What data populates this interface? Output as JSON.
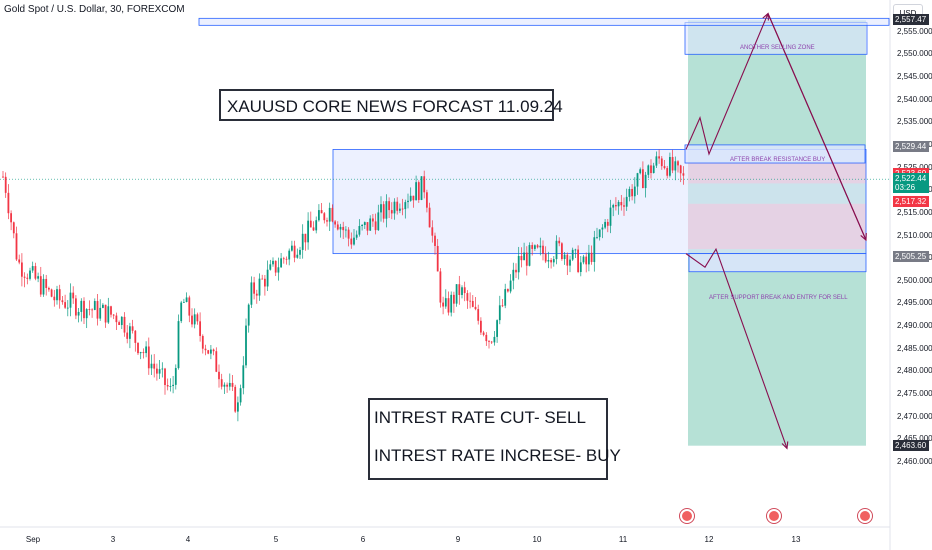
{
  "symbol_line": "Gold Spot / U.S. Dollar, 30, FOREXCOM",
  "currency": "USD",
  "title_annotation": "XAUUSD CORE  NEWS FORCAST 11.09.24",
  "notes": [
    "INTREST RATE CUT- SELL",
    "INTREST RATE INCRESE- BUY"
  ],
  "zones": {
    "selling": "ANOTHER SELLING ZONE",
    "resistance": "AFTER BREAK RESISTANCE BUY",
    "support": "AFTER SUPPORT   BREAK AND ENTRY FOR SELL"
  },
  "price_labels": [
    {
      "id": "upper",
      "price": 2557.47,
      "text": "2,557.47",
      "color": "#2a2e39"
    },
    {
      "id": "resist",
      "price": 2529.44,
      "text": "2,529.44",
      "color": "#787b86"
    },
    {
      "id": "stop",
      "price": 2523.6,
      "text": "2,523.60",
      "color": "#f23645"
    },
    {
      "id": "last",
      "price": 2522.44,
      "text": "2,522.44",
      "color": "#089981",
      "sub": "03:26"
    },
    {
      "id": "entry",
      "price": 2517.32,
      "text": "2,517.32",
      "color": "#f23645"
    },
    {
      "id": "support",
      "price": 2505.25,
      "text": "2,505.25",
      "color": "#787b86"
    },
    {
      "id": "target",
      "price": 2463.6,
      "text": "2,463.60",
      "color": "#2a2e39"
    }
  ],
  "x_ticks": [
    "Sep",
    "3",
    "4",
    "5",
    "6",
    "9",
    "10",
    "11",
    "12",
    "13"
  ],
  "colors": {
    "up": "#089981",
    "down": "#f23645",
    "zone_fill": "#dfe6ff",
    "zone_border": "#2962ff",
    "target": "#a9dccf",
    "stop": "#f4b6c2",
    "arrow": "#880e4f"
  },
  "chart_data": {
    "type": "candlestick",
    "title": "Gold Spot / U.S. Dollar, 30, FOREXCOM",
    "ylim": [
      2460,
      2560
    ],
    "y_ticks": [
      2460,
      2465,
      2470,
      2475,
      2480,
      2485,
      2490,
      2495,
      2500,
      2505,
      2510,
      2515,
      2520,
      2525,
      2530,
      2535,
      2540,
      2545,
      2550,
      2555
    ],
    "x_categories": [
      "Sep",
      "3",
      "4",
      "5",
      "6",
      "9",
      "10",
      "11",
      "12",
      "13"
    ],
    "keypoints": [
      {
        "day": "Sep",
        "price": 2523
      },
      {
        "day": "Sep",
        "price": 2504
      },
      {
        "day": "3",
        "price": 2496
      },
      {
        "day": "3",
        "price": 2492
      },
      {
        "day": "4",
        "price": 2475
      },
      {
        "day": "4",
        "price": 2496
      },
      {
        "day": "5",
        "price": 2472
      },
      {
        "day": "5",
        "price": 2497
      },
      {
        "day": "6",
        "price": 2516
      },
      {
        "day": "6",
        "price": 2509
      },
      {
        "day": "6",
        "price": 2518
      },
      {
        "day": "6",
        "price": 2521
      },
      {
        "day": "9",
        "price": 2493
      },
      {
        "day": "9",
        "price": 2498
      },
      {
        "day": "9",
        "price": 2487
      },
      {
        "day": "10",
        "price": 2505
      },
      {
        "day": "10",
        "price": 2507
      },
      {
        "day": "10",
        "price": 2503
      },
      {
        "day": "11",
        "price": 2515
      },
      {
        "day": "11",
        "price": 2527
      },
      {
        "day": "11",
        "price": 2522
      }
    ],
    "last_price": 2522.44,
    "zones": [
      {
        "label": "ANOTHER SELLING ZONE",
        "low": 2550,
        "high": 2557
      },
      {
        "label": "AFTER BREAK RESISTANCE BUY",
        "low": 2526,
        "high": 2530
      },
      {
        "label": "AFTER SUPPORT   BREAK AND ENTRY FOR SELL",
        "low": 2502,
        "high": 2506
      },
      {
        "label": "range",
        "low": 2506,
        "high": 2529
      }
    ],
    "trade_boxes": [
      {
        "kind": "target",
        "low": 2463.6,
        "high": 2557.5
      },
      {
        "kind": "stop",
        "low": 2521.5,
        "high": 2526
      },
      {
        "kind": "stop",
        "low": 2507,
        "high": 2517
      }
    ],
    "projections": [
      {
        "name": "buy-path",
        "points": [
          2529,
          2536,
          2528,
          2559,
          2509
        ]
      },
      {
        "name": "sell-path",
        "points": [
          2506,
          2503,
          2463
        ]
      }
    ]
  }
}
